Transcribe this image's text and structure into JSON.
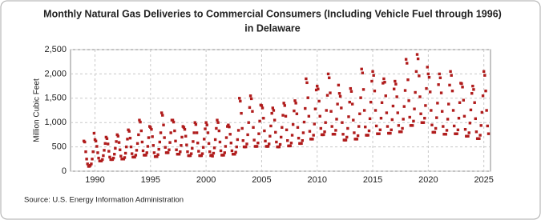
{
  "chart_data": {
    "type": "scatter",
    "title": "Monthly Natural Gas Deliveries to Commercial Consumers (Including Vehicle Fuel through 1996)",
    "title_line2": "in Delaware",
    "y_label": "Million Cubic Feet",
    "source": "Source: U.S. Energy Information Administration",
    "color": "#b01c1c",
    "grid": true,
    "xlim": [
      1987.8,
      2025.6
    ],
    "xticks": [
      1990,
      1995,
      2000,
      2005,
      2010,
      2015,
      2020,
      2025
    ],
    "ylim": [
      0,
      2500
    ],
    "yticks": [
      0,
      500,
      {
        "value": 1000,
        "label": "1,000"
      },
      {
        "value": 1500,
        "label": "1,500"
      },
      {
        "value": 2000,
        "label": "2,000"
      },
      {
        "value": 2500,
        "label": "2,500"
      }
    ],
    "x": [
      1989.0,
      1989.08,
      1989.17,
      1989.25,
      1989.33,
      1989.42,
      1989.5,
      1989.58,
      1989.67,
      1989.75,
      1989.83,
      1989.92,
      1990.0,
      1990.08,
      1990.17,
      1990.25,
      1990.33,
      1990.42,
      1990.5,
      1990.58,
      1990.67,
      1990.75,
      1990.83,
      1990.92,
      1991.0,
      1991.08,
      1991.17,
      1991.25,
      1991.33,
      1991.42,
      1991.5,
      1991.58,
      1991.67,
      1991.75,
      1991.83,
      1991.92,
      1992.0,
      1992.08,
      1992.17,
      1992.25,
      1992.33,
      1992.42,
      1992.5,
      1992.58,
      1992.67,
      1992.75,
      1992.83,
      1992.92,
      1993.0,
      1993.08,
      1993.17,
      1993.25,
      1993.33,
      1993.42,
      1993.5,
      1993.58,
      1993.67,
      1993.75,
      1993.83,
      1993.92,
      1994.0,
      1994.08,
      1994.17,
      1994.25,
      1994.33,
      1994.42,
      1994.5,
      1994.58,
      1994.67,
      1994.75,
      1994.83,
      1994.92,
      1995.0,
      1995.08,
      1995.17,
      1995.25,
      1995.33,
      1995.42,
      1995.5,
      1995.58,
      1995.67,
      1995.75,
      1995.83,
      1995.92,
      1996.0,
      1996.08,
      1996.17,
      1996.25,
      1996.33,
      1996.42,
      1996.5,
      1996.58,
      1996.67,
      1996.75,
      1996.83,
      1996.92,
      1997.0,
      1997.08,
      1997.17,
      1997.25,
      1997.33,
      1997.42,
      1997.5,
      1997.58,
      1997.67,
      1997.75,
      1997.83,
      1997.92,
      1998.0,
      1998.08,
      1998.17,
      1998.25,
      1998.33,
      1998.42,
      1998.5,
      1998.58,
      1998.67,
      1998.75,
      1998.83,
      1998.92,
      1999.0,
      1999.08,
      1999.17,
      1999.25,
      1999.33,
      1999.42,
      1999.5,
      1999.58,
      1999.67,
      1999.75,
      1999.83,
      1999.92,
      2000.0,
      2000.08,
      2000.17,
      2000.25,
      2000.33,
      2000.42,
      2000.5,
      2000.58,
      2000.67,
      2000.75,
      2000.83,
      2000.92,
      2001.0,
      2001.08,
      2001.17,
      2001.25,
      2001.33,
      2001.42,
      2001.5,
      2001.58,
      2001.67,
      2001.75,
      2001.83,
      2001.92,
      2002.0,
      2002.08,
      2002.17,
      2002.25,
      2002.33,
      2002.42,
      2002.5,
      2002.58,
      2002.67,
      2002.75,
      2002.83,
      2002.92,
      2003.0,
      2003.08,
      2003.17,
      2003.25,
      2003.33,
      2003.42,
      2003.5,
      2003.58,
      2003.67,
      2003.75,
      2003.83,
      2003.92,
      2004.0,
      2004.08,
      2004.17,
      2004.25,
      2004.33,
      2004.42,
      2004.5,
      2004.58,
      2004.67,
      2004.75,
      2004.83,
      2004.92,
      2005.0,
      2005.08,
      2005.17,
      2005.25,
      2005.33,
      2005.42,
      2005.5,
      2005.58,
      2005.67,
      2005.75,
      2005.83,
      2005.92,
      2006.0,
      2006.08,
      2006.17,
      2006.25,
      2006.33,
      2006.42,
      2006.5,
      2006.58,
      2006.67,
      2006.75,
      2006.83,
      2006.92,
      2007.0,
      2007.08,
      2007.17,
      2007.25,
      2007.33,
      2007.42,
      2007.5,
      2007.58,
      2007.67,
      2007.75,
      2007.83,
      2007.92,
      2008.0,
      2008.08,
      2008.17,
      2008.25,
      2008.33,
      2008.42,
      2008.5,
      2008.58,
      2008.67,
      2008.75,
      2008.83,
      2008.92,
      2009.0,
      2009.08,
      2009.17,
      2009.25,
      2009.33,
      2009.42,
      2009.5,
      2009.58,
      2009.67,
      2009.75,
      2009.83,
      2009.92,
      2010.0,
      2010.08,
      2010.17,
      2010.25,
      2010.33,
      2010.42,
      2010.5,
      2010.58,
      2010.67,
      2010.75,
      2010.83,
      2010.92,
      2011.0,
      2011.08,
      2011.17,
      2011.25,
      2011.33,
      2011.42,
      2011.5,
      2011.58,
      2011.67,
      2011.75,
      2011.83,
      2011.92,
      2012.0,
      2012.08,
      2012.17,
      2012.25,
      2012.33,
      2012.42,
      2012.5,
      2012.58,
      2012.67,
      2012.75,
      2012.83,
      2012.92,
      2013.0,
      2013.08,
      2013.17,
      2013.25,
      2013.33,
      2013.42,
      2013.5,
      2013.58,
      2013.67,
      2013.75,
      2013.83,
      2013.92,
      2014.0,
      2014.08,
      2014.17,
      2014.25,
      2014.33,
      2014.42,
      2014.5,
      2014.58,
      2014.67,
      2014.75,
      2014.83,
      2014.92,
      2015.0,
      2015.08,
      2015.17,
      2015.25,
      2015.33,
      2015.42,
      2015.5,
      2015.58,
      2015.67,
      2015.75,
      2015.83,
      2015.92,
      2016.0,
      2016.08,
      2016.17,
      2016.25,
      2016.33,
      2016.42,
      2016.5,
      2016.58,
      2016.67,
      2016.75,
      2016.83,
      2016.92,
      2017.0,
      2017.08,
      2017.17,
      2017.25,
      2017.33,
      2017.42,
      2017.5,
      2017.58,
      2017.67,
      2017.75,
      2017.83,
      2017.92,
      2018.0,
      2018.08,
      2018.17,
      2018.25,
      2018.33,
      2018.42,
      2018.5,
      2018.58,
      2018.67,
      2018.75,
      2018.83,
      2018.92,
      2019.0,
      2019.08,
      2019.17,
      2019.25,
      2019.33,
      2019.42,
      2019.5,
      2019.58,
      2019.67,
      2019.75,
      2019.83,
      2019.92,
      2020.0,
      2020.08,
      2020.17,
      2020.25,
      2020.33,
      2020.42,
      2020.5,
      2020.58,
      2020.67,
      2020.75,
      2020.83,
      2020.92,
      2021.0,
      2021.08,
      2021.17,
      2021.25,
      2021.33,
      2021.42,
      2021.5,
      2021.58,
      2021.67,
      2021.75,
      2021.83,
      2021.92,
      2022.0,
      2022.08,
      2022.17,
      2022.25,
      2022.33,
      2022.42,
      2022.5,
      2022.58,
      2022.67,
      2022.75,
      2022.83,
      2022.92,
      2023.0,
      2023.08,
      2023.17,
      2023.25,
      2023.33,
      2023.42,
      2023.5,
      2023.58,
      2023.67,
      2023.75,
      2023.83,
      2023.92,
      2024.0,
      2024.08,
      2024.17,
      2024.25,
      2024.33,
      2024.42,
      2024.5,
      2024.58,
      2024.67,
      2024.75,
      2024.83,
      2024.92,
      2025.0,
      2025.08,
      2025.17,
      2025.25,
      2025.33,
      2025.42
    ],
    "values": [
      620,
      600,
      400,
      250,
      150,
      100,
      100,
      120,
      150,
      250,
      400,
      780,
      650,
      620,
      510,
      380,
      270,
      210,
      210,
      210,
      240,
      320,
      430,
      570,
      700,
      670,
      560,
      410,
      290,
      240,
      240,
      240,
      270,
      350,
      470,
      610,
      750,
      720,
      590,
      440,
      310,
      250,
      250,
      250,
      280,
      370,
      500,
      660,
      850,
      820,
      680,
      500,
      360,
      290,
      290,
      290,
      330,
      430,
      570,
      750,
      1050,
      1010,
      830,
      600,
      420,
      330,
      330,
      330,
      380,
      510,
      690,
      920,
      900,
      860,
      710,
      530,
      380,
      300,
      300,
      300,
      340,
      450,
      600,
      790,
      1200,
      1150,
      950,
      690,
      490,
      380,
      380,
      380,
      440,
      590,
      790,
      1050,
      1050,
      1010,
      830,
      620,
      440,
      350,
      350,
      350,
      400,
      530,
      700,
      920,
      900,
      860,
      720,
      540,
      400,
      320,
      320,
      320,
      360,
      470,
      610,
      790,
      1000,
      960,
      790,
      580,
      410,
      320,
      320,
      320,
      360,
      490,
      660,
      870,
      1000,
      950,
      790,
      570,
      400,
      320,
      330,
      310,
      370,
      480,
      650,
      880,
      1050,
      1000,
      830,
      600,
      420,
      330,
      330,
      330,
      380,
      510,
      690,
      920,
      950,
      910,
      760,
      580,
      420,
      350,
      350,
      350,
      390,
      500,
      650,
      840,
      1500,
      1440,
      1190,
      880,
      630,
      500,
      500,
      500,
      560,
      750,
      1000,
      1310,
      1550,
      1490,
      1230,
      900,
      640,
      510,
      510,
      510,
      580,
      770,
      1030,
      1360,
      1350,
      1300,
      1090,
      830,
      620,
      510,
      510,
      510,
      560,
      720,
      930,
      1190,
      1300,
      1250,
      1050,
      800,
      600,
      500,
      500,
      500,
      550,
      700,
      900,
      1150,
      1400,
      1350,
      1130,
      850,
      630,
      520,
      520,
      520,
      580,
      740,
      960,
      1240,
      1450,
      1400,
      1180,
      900,
      680,
      570,
      570,
      570,
      630,
      790,
      1010,
      1290,
      1900,
      1820,
      1510,
      1130,
      820,
      660,
      660,
      660,
      740,
      970,
      1280,
      1670,
      1750,
      1690,
      1440,
      1130,
      880,
      750,
      750,
      750,
      810,
      1000,
      1250,
      1560,
      2000,
      1920,
      1610,
      1230,
      920,
      760,
      760,
      760,
      840,
      1070,
      1380,
      1770,
      1600,
      1540,
      1300,
      1000,
      760,
      640,
      640,
      640,
      700,
      880,
      1120,
      1420,
      1700,
      1640,
      1380,
      1050,
      790,
      660,
      660,
      660,
      730,
      920,
      1180,
      1510,
      2100,
      2020,
      1680,
      1250,
      910,
      740,
      740,
      740,
      830,
      1080,
      1420,
      1850,
      2050,
      1970,
      1650,
      1250,
      930,
      770,
      770,
      770,
      850,
      1090,
      1410,
      1810,
      1900,
      1830,
      1550,
      1200,
      920,
      780,
      780,
      780,
      850,
      1060,
      1340,
      1690,
      1850,
      1790,
      1530,
      1200,
      940,
      810,
      810,
      810,
      880,
      1070,
      1330,
      1660,
      2300,
      2220,
      1880,
      1450,
      1110,
      940,
      940,
      940,
      1030,
      1280,
      1620,
      2050,
      2400,
      2310,
      1960,
      1530,
      1180,
      1000,
      1000,
      1000,
      1090,
      1350,
      1700,
      2140,
      2000,
      1930,
      1630,
      1250,
      950,
      800,
      800,
      800,
      880,
      1100,
      1400,
      1780,
      2000,
      1920,
      1610,
      1230,
      920,
      760,
      760,
      760,
      840,
      1070,
      1380,
      1770,
      2050,
      1970,
      1650,
      1250,
      930,
      770,
      770,
      770,
      850,
      1090,
      1410,
      1810,
      1800,
      1730,
      1460,
      1130,
      860,
      720,
      720,
      720,
      790,
      990,
      1260,
      1600,
      1750,
      1680,
      1410,
      1080,
      810,
      670,
      670,
      670,
      740,
      940,
      1210,
      1550,
      2050,
      1970,
      1650,
      1250,
      930,
      770
    ]
  }
}
